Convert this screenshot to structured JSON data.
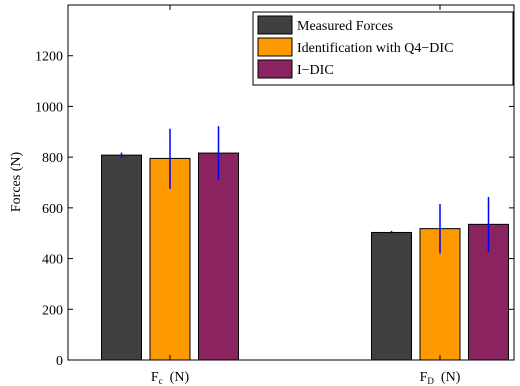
{
  "chart_data": {
    "type": "bar",
    "categories": [
      {
        "main": "F",
        "sub": "c",
        "unit": "(N)"
      },
      {
        "main": "F",
        "sub": "D",
        "unit": "(N)"
      }
    ],
    "ylabel": "Forces (N)",
    "xlabel": "",
    "ylim": [
      0,
      1400
    ],
    "yticks": [
      0,
      200,
      400,
      600,
      800,
      1000,
      1200
    ],
    "grid": false,
    "legend_position": "top-right",
    "series": [
      {
        "name": "Measured Forces",
        "color": "#404040",
        "values": [
          808,
          503
        ],
        "err_low": [
          798,
          497
        ],
        "err_high": [
          818,
          509
        ]
      },
      {
        "name": "Identification with Q4−DIC",
        "color": "#FF9900",
        "values": [
          795,
          518
        ],
        "err_low": [
          675,
          420
        ],
        "err_high": [
          912,
          615
        ]
      },
      {
        "name": "I−DIC",
        "color": "#8B2360",
        "values": [
          816,
          535
        ],
        "err_low": [
          710,
          427
        ],
        "err_high": [
          922,
          643
        ]
      }
    ],
    "error_bar_color": "#0000FF"
  }
}
